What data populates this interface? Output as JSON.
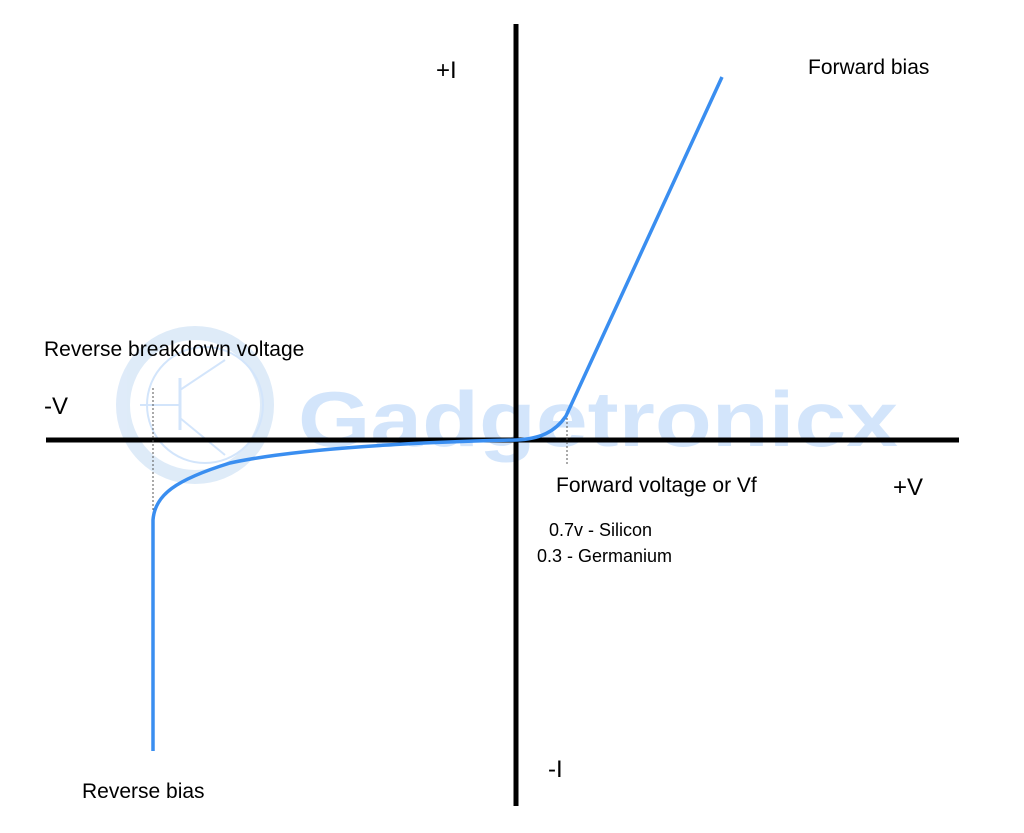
{
  "labels": {
    "plus_i": "+I",
    "minus_i": "-I",
    "minus_v": "-V",
    "plus_v": "+V",
    "forward_bias": "Forward bias",
    "reverse_bias": "Reverse bias",
    "reverse_breakdown": "Reverse breakdown voltage",
    "forward_voltage": "Forward voltage or Vf",
    "silicon": "0.7v - Silicon",
    "germanium": "0.3 - Germanium"
  },
  "watermark": {
    "text": "Gadgetronicx",
    "color": "#cfe3fb"
  },
  "colors": {
    "curve": "#3a8ef0",
    "axes": "#000000"
  }
}
